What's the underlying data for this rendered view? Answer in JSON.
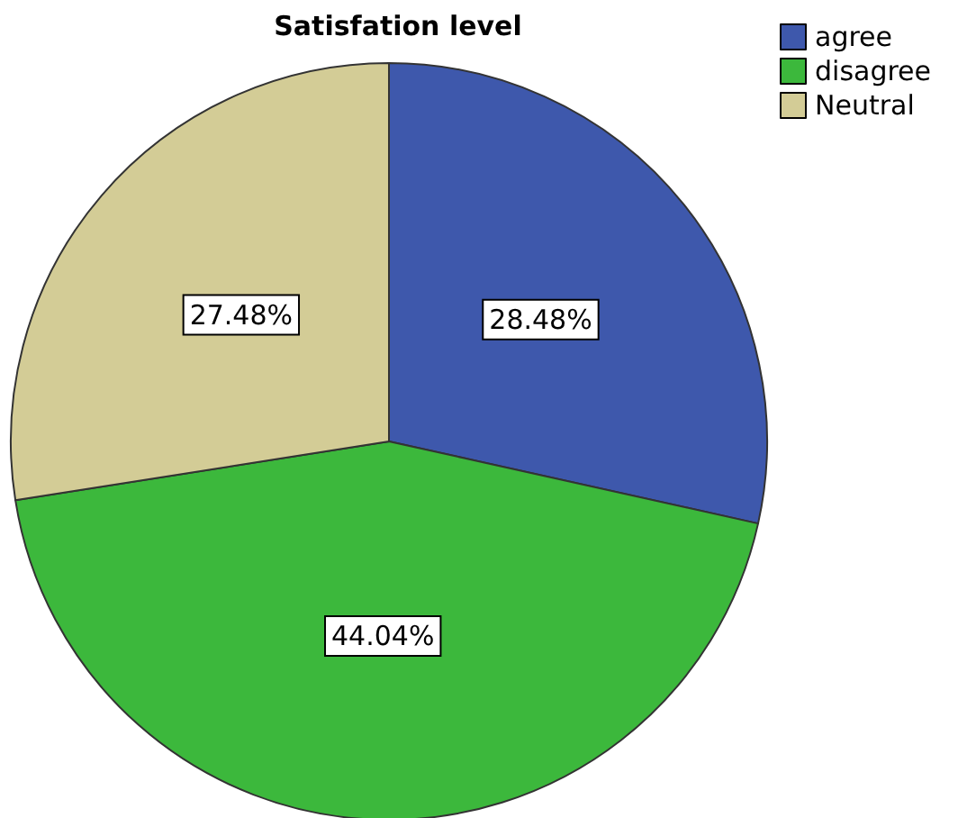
{
  "chart_data": {
    "type": "pie",
    "title": "Satisfation level",
    "categories": [
      "agree",
      "disagree",
      "Neutral"
    ],
    "values": [
      28.48,
      44.04,
      27.48
    ],
    "colors": [
      "#3e58ac",
      "#3cb83c",
      "#d3cc96"
    ],
    "value_labels": [
      "28.48%",
      "44.04%",
      "27.48%"
    ],
    "legend": "top right"
  }
}
